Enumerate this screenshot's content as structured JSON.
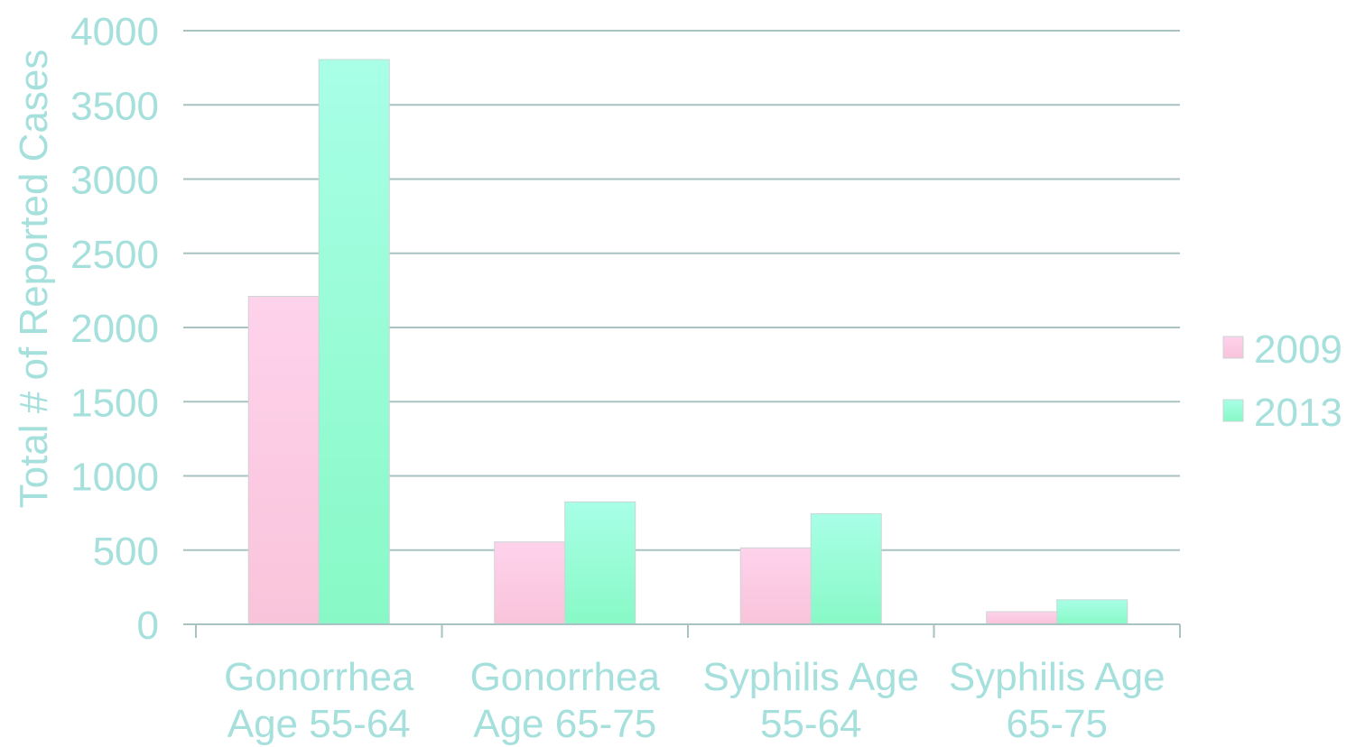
{
  "chart_data": {
    "type": "bar",
    "ylabel": "Total # of Reported Cases",
    "categories": [
      [
        "Gonorrhea",
        "Age 55-64"
      ],
      [
        "Gonorrhea",
        "Age 65-75"
      ],
      [
        "Syphilis Age",
        "55-64"
      ],
      [
        "Syphilis Age",
        "65-75"
      ]
    ],
    "series": [
      {
        "name": "2009",
        "values": [
          2210,
          555,
          515,
          85
        ],
        "color_top": "#ffd2ec",
        "color_bottom": "#f8c4da"
      },
      {
        "name": "2013",
        "values": [
          3805,
          825,
          745,
          165
        ],
        "color_top": "#a8ffe6",
        "color_bottom": "#88f9c6"
      }
    ],
    "ylim": [
      0,
      4000
    ],
    "yticks": [
      0,
      500,
      1000,
      1500,
      2000,
      2500,
      3000,
      3500,
      4000
    ],
    "grid": true,
    "legend": "right",
    "text_color": "#a5e0dc",
    "grid_color": "#a9c2c2"
  }
}
